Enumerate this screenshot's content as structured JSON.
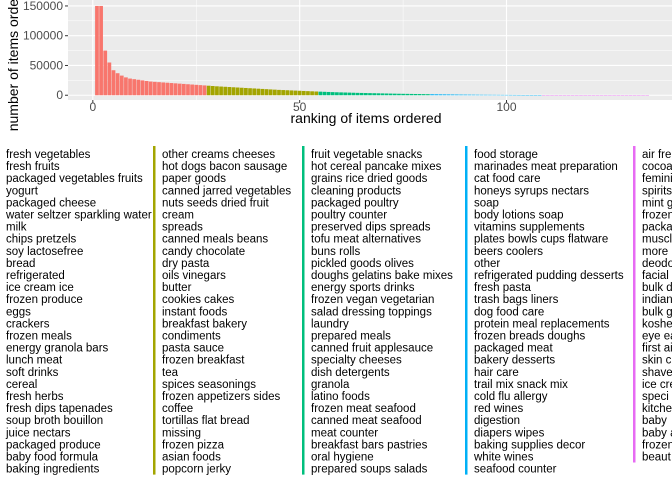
{
  "chart_data": {
    "type": "bar",
    "xlabel": "ranking of items ordered",
    "ylabel": "number of items ordered",
    "x_ticks": [
      0,
      50,
      100
    ],
    "y_ticks": [
      0,
      50000,
      100000,
      150000
    ],
    "y_tick_labels": [
      "0",
      "50000",
      "100000",
      "150000"
    ],
    "xlim": [
      -6,
      140
    ],
    "ylim": [
      -8000,
      160000
    ],
    "grid": true,
    "legend_position": "bottom",
    "ranks": [
      1,
      2,
      3,
      4,
      5,
      6,
      7,
      8,
      9,
      10,
      11,
      12,
      13,
      14,
      15,
      16,
      17,
      18,
      19,
      20,
      21,
      22,
      23,
      24,
      25,
      26,
      27,
      28,
      29,
      30,
      31,
      32,
      33,
      34,
      35,
      36,
      37,
      38,
      39,
      40,
      41,
      42,
      43,
      44,
      45,
      46,
      47,
      48,
      49,
      50,
      51,
      52,
      53,
      54,
      55,
      56,
      57,
      58,
      59,
      60,
      61,
      62,
      63,
      64,
      65,
      66,
      67,
      68,
      69,
      70,
      71,
      72,
      73,
      74,
      75,
      76,
      77,
      78,
      79,
      80,
      81,
      82,
      83,
      84,
      85,
      86,
      87,
      88,
      89,
      90,
      91,
      92,
      93,
      94,
      95,
      96,
      97,
      98,
      99,
      100,
      101,
      102,
      103,
      104,
      105,
      106,
      107,
      108,
      109,
      110,
      111,
      112,
      113,
      114,
      115,
      116,
      117,
      118,
      119,
      120,
      121,
      122,
      123,
      124,
      125,
      126,
      127,
      128,
      129,
      130,
      131,
      132,
      133,
      134
    ],
    "values": [
      150000,
      150000,
      75000,
      55000,
      42000,
      37000,
      33000,
      30000,
      28000,
      27000,
      26000,
      25000,
      24000,
      23000,
      22500,
      22000,
      21500,
      21000,
      20500,
      20000,
      19500,
      19000,
      18500,
      18000,
      17500,
      17000,
      16500,
      16000,
      15500,
      15000,
      14600,
      14200,
      13800,
      13400,
      13000,
      12600,
      12200,
      11800,
      11400,
      11000,
      10600,
      10200,
      9800,
      9400,
      9000,
      8700,
      8400,
      8100,
      7800,
      7500,
      7200,
      6900,
      6600,
      6300,
      6000,
      5750,
      5500,
      5250,
      5000,
      4800,
      4600,
      4400,
      4200,
      4000,
      3850,
      3700,
      3550,
      3400,
      3250,
      3100,
      2950,
      2800,
      2650,
      2500,
      2400,
      2300,
      2200,
      2100,
      2000,
      1900,
      1800,
      1700,
      1600,
      1500,
      1420,
      1340,
      1260,
      1180,
      1100,
      1040,
      980,
      920,
      860,
      800,
      760,
      720,
      680,
      640,
      600,
      560,
      520,
      480,
      440,
      400,
      370,
      340,
      310,
      280,
      250,
      230,
      210,
      190,
      170,
      150,
      135,
      120,
      105,
      90,
      78,
      66,
      56,
      48,
      40,
      33,
      27,
      22,
      18,
      15,
      12,
      10,
      8,
      6,
      5,
      4
    ],
    "legend_columns": [
      {
        "color": "#F8766D",
        "entries": [
          "fresh vegetables",
          "fresh fruits",
          "packaged vegetables fruits",
          "yogurt",
          "packaged cheese",
          "water seltzer sparkling water",
          "milk",
          "chips pretzels",
          "soy lactosefree",
          "bread",
          "refrigerated",
          "ice cream ice",
          "frozen produce",
          "eggs",
          "crackers",
          "frozen meals",
          "energy granola bars",
          "lunch meat",
          "soft drinks",
          "cereal",
          "fresh herbs",
          "fresh dips tapenades",
          "soup broth bouillon",
          "juice nectars",
          "packaged produce",
          "baby food formula",
          "baking ingredients"
        ]
      },
      {
        "color": "#A3A500",
        "entries": [
          "other creams cheeses",
          "hot dogs bacon sausage",
          "paper goods",
          "canned jarred vegetables",
          "nuts seeds dried fruit",
          "cream",
          "spreads",
          "canned meals beans",
          "candy chocolate",
          "dry pasta",
          "oils vinegars",
          "butter",
          "cookies cakes",
          "instant foods",
          "breakfast bakery",
          "condiments",
          "pasta sauce",
          "frozen breakfast",
          "tea",
          "spices seasonings",
          "frozen appetizers sides",
          "coffee",
          "tortillas flat bread",
          "missing",
          "frozen pizza",
          "asian foods",
          "popcorn jerky"
        ]
      },
      {
        "color": "#00BF7D",
        "entries": [
          "fruit vegetable snacks",
          "hot cereal pancake mixes",
          "grains rice dried goods",
          "cleaning products",
          "packaged poultry",
          "poultry counter",
          "preserved dips spreads",
          "tofu meat alternatives",
          "buns rolls",
          "pickled goods olives",
          "doughs gelatins bake mixes",
          "energy sports drinks",
          "frozen vegan vegetarian",
          "salad dressing toppings",
          "laundry",
          "prepared meals",
          "canned fruit applesauce",
          "specialty cheeses",
          "dish detergents",
          "granola",
          "latino foods",
          "frozen meat seafood",
          "canned meat seafood",
          "meat counter",
          "breakfast bars pastries",
          "oral hygiene",
          "prepared soups salads"
        ]
      },
      {
        "color": "#00B0F6",
        "entries": [
          "food storage",
          "marinades meat preparation",
          "cat food care",
          "honeys syrups nectars",
          "soap",
          "body lotions soap",
          "vitamins supplements",
          "plates bowls cups flatware",
          "beers coolers",
          "other",
          "refrigerated pudding desserts",
          "fresh pasta",
          "trash bags liners",
          "dog food care",
          "protein meal replacements",
          "frozen breads doughs",
          "packaged meat",
          "bakery desserts",
          "hair care",
          "trail mix snack mix",
          "cold flu allergy",
          "red wines",
          "digestion",
          "diapers wipes",
          "baking supplies decor",
          "white wines",
          "seafood counter"
        ]
      },
      {
        "color": "#E76BF3",
        "entries": [
          "air fre",
          "cocoa",
          "femini",
          "spirits",
          "mint g",
          "frozen",
          "packa",
          "muscl",
          "more",
          "deodo",
          "facial",
          "bulk d",
          "indian",
          "bulk g",
          "koshe",
          "eye ea",
          "first ai",
          "skin c",
          "shave",
          "ice cre",
          "speci",
          "kitche",
          "baby",
          "baby a",
          "frozen",
          "beaut"
        ]
      }
    ]
  }
}
